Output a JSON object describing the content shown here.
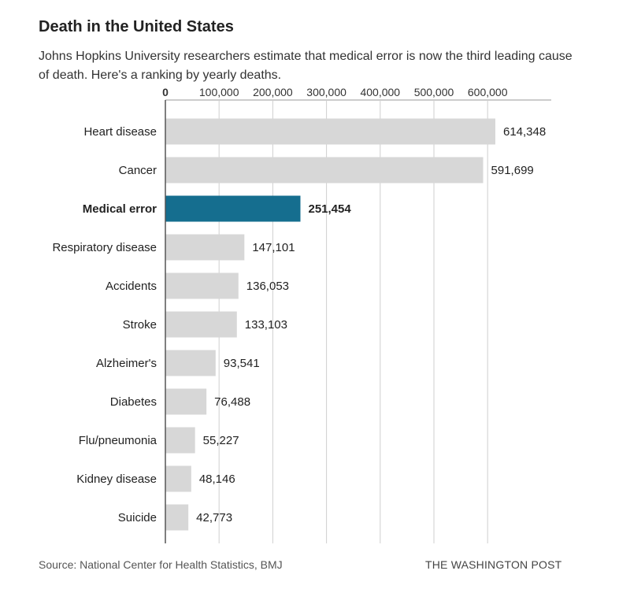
{
  "header": {
    "title": "Death in the United States",
    "subtitle": "Johns Hopkins University researchers estimate that medical error is now the third leading cause of death. Here's a ranking by yearly deaths."
  },
  "footer": {
    "source": "Source: National Center for Health Statistics, BMJ",
    "brand": "THE WASHINGTON POST"
  },
  "colors": {
    "bar": "#d7d7d7",
    "highlight": "#156e8f",
    "grid": "#cfcfcf"
  },
  "chart_data": {
    "type": "bar",
    "orientation": "horizontal",
    "title": "Death in the United States",
    "xlabel": "",
    "ylabel": "",
    "xlim": [
      0,
      700000
    ],
    "ticks": [
      0,
      100000,
      200000,
      300000,
      400000,
      500000,
      600000
    ],
    "tick_labels": [
      "0",
      "100,000",
      "200,000",
      "300,000",
      "400,000",
      "500,000",
      "600,000"
    ],
    "highlight": "Medical error",
    "categories": [
      "Heart disease",
      "Cancer",
      "Medical error",
      "Respiratory disease",
      "Accidents",
      "Stroke",
      "Alzheimer's",
      "Diabetes",
      "Flu/pneumonia",
      "Kidney disease",
      "Suicide"
    ],
    "values": [
      614348,
      591699,
      251454,
      147101,
      136053,
      133103,
      93541,
      76488,
      55227,
      48146,
      42773
    ],
    "value_labels": [
      "614,348",
      "591,699",
      "251,454",
      "147,101",
      "136,053",
      "133,103",
      "93,541",
      "76,488",
      "55,227",
      "48,146",
      "42,773"
    ]
  }
}
